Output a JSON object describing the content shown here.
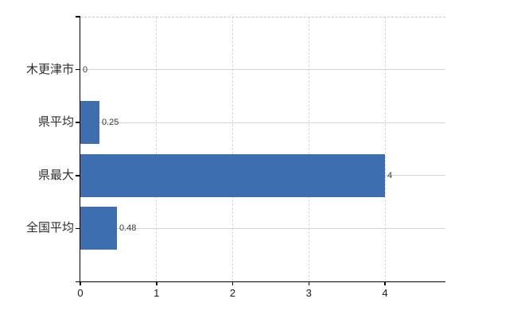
{
  "chart_data": {
    "type": "bar",
    "orientation": "horizontal",
    "title": "",
    "xlabel": "",
    "ylabel": "",
    "categories": [
      "木更津市",
      "県平均",
      "県最大",
      "全国平均"
    ],
    "values": [
      0,
      0.25,
      4,
      0.48
    ],
    "data_labels": [
      "0",
      "0.25",
      "4",
      "0.48"
    ],
    "x_ticks": [
      0,
      1,
      2,
      3,
      4
    ],
    "x_tick_labels": [
      "0",
      "1",
      "2",
      "3",
      "4"
    ],
    "xlim": [
      0,
      4.8
    ],
    "grid": true,
    "legend": false,
    "colors": {
      "bar": "#3d6eb0",
      "h_gridline": "#d0d9d0",
      "v_gridline": "#d9d9dc",
      "top_border": "#c9c9c9",
      "axis": "#000000",
      "category_label": "#2e2e2e",
      "tick_label": "#1a1a1a",
      "value_label": "#3a3a3a",
      "background": "#ffffff"
    }
  }
}
